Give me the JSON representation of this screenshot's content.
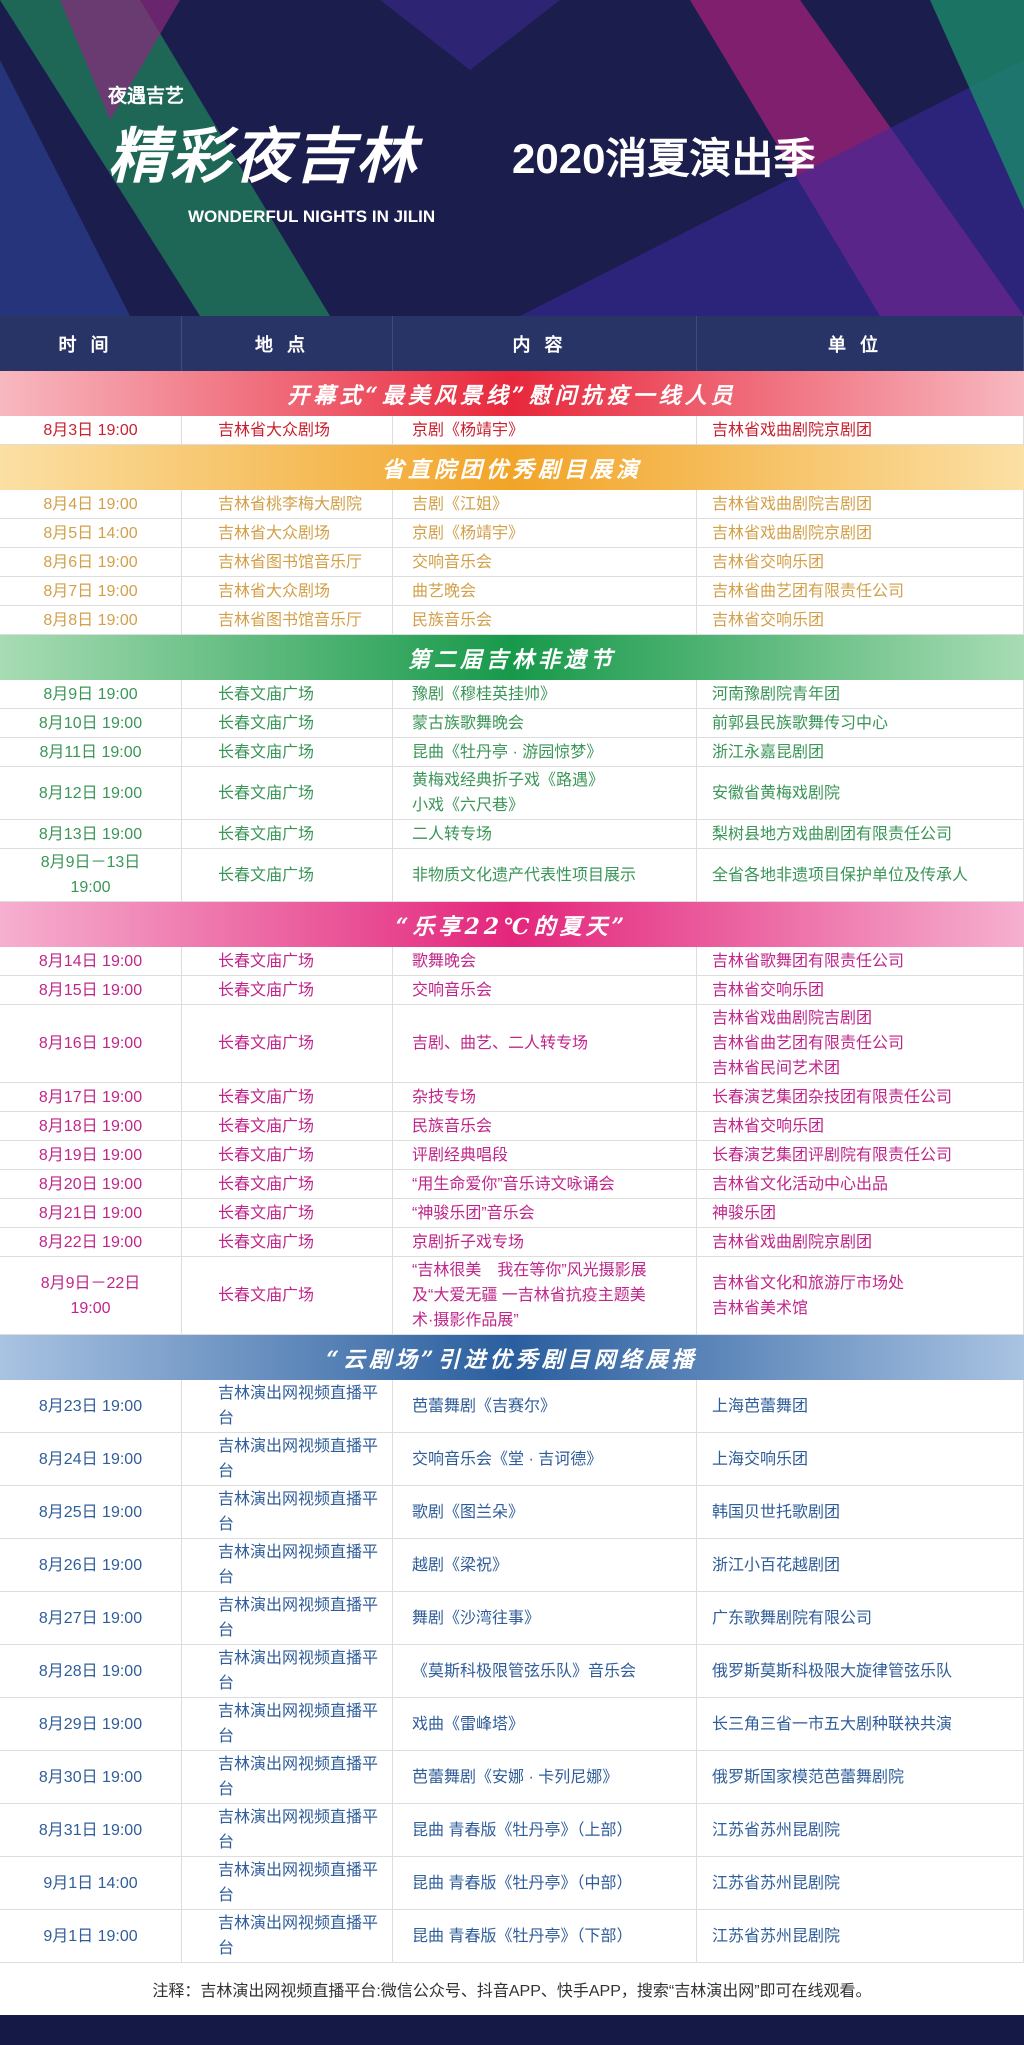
{
  "banner": {
    "subtitle": "夜遇吉艺",
    "calligraphy": "精彩夜吉林",
    "title": "2020消夏演出季",
    "english": "WONDERFUL NIGHTS IN JILIN"
  },
  "header": [
    "时间",
    "地点",
    "内容",
    "单位"
  ],
  "sections": [
    {
      "title": "开幕式“最美风景线”慰问抗疫一线人员",
      "band": "#e8283c",
      "band_light": "#f8b8c0",
      "text": "#c8202f",
      "rows": [
        [
          "8月3日 19:00",
          "吉林省大众剧场",
          "京剧《杨靖宇》",
          "吉林省戏曲剧院京剧团"
        ]
      ]
    },
    {
      "title": "省直院团优秀剧目展演",
      "band": "#f2a428",
      "band_light": "#fbe0a4",
      "text": "#d2a04a",
      "rows": [
        [
          "8月4日 19:00",
          "吉林省桃李梅大剧院",
          "吉剧《江姐》",
          "吉林省戏曲剧院吉剧团"
        ],
        [
          "8月5日 14:00",
          "吉林省大众剧场",
          "京剧《杨靖宇》",
          "吉林省戏曲剧院京剧团"
        ],
        [
          "8月6日 19:00",
          "吉林省图书馆音乐厅",
          "交响音乐会",
          "吉林省交响乐团"
        ],
        [
          "8月7日 19:00",
          "吉林省大众剧场",
          "曲艺晚会",
          "吉林省曲艺团有限责任公司"
        ],
        [
          "8月8日 19:00",
          "吉林省图书馆音乐厅",
          "民族音乐会",
          "吉林省交响乐团"
        ]
      ]
    },
    {
      "title": "第二届吉林非遗节",
      "band": "#17994a",
      "band_light": "#a8dcb4",
      "text": "#3a9657",
      "rows": [
        [
          "8月9日 19:00",
          "长春文庙广场",
          "豫剧《穆桂英挂帅》",
          "河南豫剧院青年团"
        ],
        [
          "8月10日 19:00",
          "长春文庙广场",
          "蒙古族歌舞晚会",
          "前郭县民族歌舞传习中心"
        ],
        [
          "8月11日 19:00",
          "长春文庙广场",
          "昆曲《牡丹亭 · 游园惊梦》",
          "浙江永嘉昆剧团"
        ],
        [
          "8月12日 19:00",
          "长春文庙广场",
          "黄梅戏经典折子戏《路遇》\n小戏《六尺巷》",
          "安徽省黄梅戏剧院"
        ],
        [
          "8月13日 19:00",
          "长春文庙广场",
          "二人转专场",
          "梨树县地方戏曲剧团有限责任公司"
        ],
        [
          "8月9日－13日\n19:00",
          "长春文庙广场",
          "非物质文化遗产代表性项目展示",
          "全省各地非遗项目保护单位及传承人"
        ]
      ]
    },
    {
      "title": "“乐享22℃的夏天”",
      "band": "#e3267c",
      "band_light": "#f6b0cf",
      "text": "#c0268a",
      "rows": [
        [
          "8月14日 19:00",
          "长春文庙广场",
          "歌舞晚会",
          "吉林省歌舞团有限责任公司"
        ],
        [
          "8月15日 19:00",
          "长春文庙广场",
          "交响音乐会",
          "吉林省交响乐团"
        ],
        [
          "8月16日 19:00",
          "长春文庙广场",
          "吉剧、曲艺、二人转专场",
          "吉林省戏曲剧院吉剧团\n吉林省曲艺团有限责任公司\n吉林省民间艺术团"
        ],
        [
          "8月17日 19:00",
          "长春文庙广场",
          "杂技专场",
          "长春演艺集团杂技团有限责任公司"
        ],
        [
          "8月18日 19:00",
          "长春文庙广场",
          "民族音乐会",
          "吉林省交响乐团"
        ],
        [
          "8月19日 19:00",
          "长春文庙广场",
          "评剧经典唱段",
          "长春演艺集团评剧院有限责任公司"
        ],
        [
          "8月20日 19:00",
          "长春文庙广场",
          "“用生命爱你”音乐诗文咏诵会",
          "吉林省文化活动中心出品"
        ],
        [
          "8月21日 19:00",
          "长春文庙广场",
          "“神骏乐团”音乐会",
          "神骏乐团"
        ],
        [
          "8月22日 19:00",
          "长春文庙广场",
          "京剧折子戏专场",
          "吉林省戏曲剧院京剧团"
        ],
        [
          "8月9日－22日\n19:00",
          "长春文庙广场",
          "“吉林很美　我在等你”风光摄影展\n及“大爱无疆 一吉林省抗疫主题美\n术·摄影作品展”",
          "吉林省文化和旅游厅市场处\n吉林省美术馆"
        ]
      ]
    },
    {
      "title": "“云剧场”引进优秀剧目网络展播",
      "band": "#2a5e9e",
      "band_light": "#a9c3e2",
      "text": "#2f5d9a",
      "rows": [
        [
          "8月23日 19:00",
          "吉林演出网视频直播平台",
          "芭蕾舞剧《吉赛尔》",
          "上海芭蕾舞团"
        ],
        [
          "8月24日 19:00",
          "吉林演出网视频直播平台",
          "交响音乐会《堂 · 吉诃德》",
          "上海交响乐团"
        ],
        [
          "8月25日 19:00",
          "吉林演出网视频直播平台",
          "歌剧《图兰朵》",
          "韩国贝世托歌剧团"
        ],
        [
          "8月26日 19:00",
          "吉林演出网视频直播平台",
          "越剧《梁祝》",
          "浙江小百花越剧团"
        ],
        [
          "8月27日 19:00",
          "吉林演出网视频直播平台",
          "舞剧《沙湾往事》",
          "广东歌舞剧院有限公司"
        ],
        [
          "8月28日 19:00",
          "吉林演出网视频直播平台",
          "《莫斯科极限管弦乐队》音乐会",
          "俄罗斯莫斯科极限大旋律管弦乐队"
        ],
        [
          "8月29日 19:00",
          "吉林演出网视频直播平台",
          "戏曲《雷峰塔》",
          "长三角三省一市五大剧种联袂共演"
        ],
        [
          "8月30日 19:00",
          "吉林演出网视频直播平台",
          "芭蕾舞剧《安娜 · 卡列尼娜》",
          "俄罗斯国家模范芭蕾舞剧院"
        ],
        [
          "8月31日 19:00",
          "吉林演出网视频直播平台",
          "昆曲 青春版《牡丹亭》（上部）",
          "江苏省苏州昆剧院"
        ],
        [
          "9月1日 14:00",
          "吉林演出网视频直播平台",
          "昆曲 青春版《牡丹亭》（中部）",
          "江苏省苏州昆剧院"
        ],
        [
          "9月1日 19:00",
          "吉林演出网视频直播平台",
          "昆曲 青春版《牡丹亭》（下部）",
          "江苏省苏州昆剧院"
        ]
      ]
    }
  ],
  "note": "注释：吉林演出网视频直播平台:微信公众号、抖音APP、快手APP，搜索“吉林演出网”即可在线观看。"
}
